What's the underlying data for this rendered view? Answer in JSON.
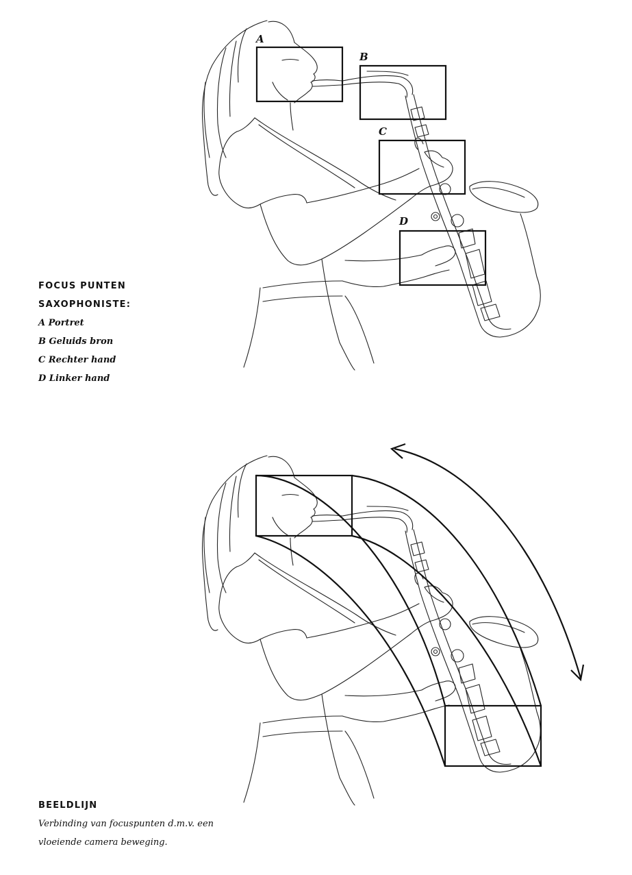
{
  "focus_points": {
    "heading_line1": "FOCUS PUNTEN",
    "heading_line2": "SAXOPHONISTE:",
    "items": [
      {
        "letter": "A",
        "label": "A Portret"
      },
      {
        "letter": "B",
        "label": "B Geluids bron"
      },
      {
        "letter": "C",
        "label": "C Rechter hand"
      },
      {
        "letter": "D",
        "label": "D Linker hand"
      }
    ]
  },
  "beeldlijn": {
    "heading": "BEELDLIJN",
    "line1": "Verbinding van focuspunten d.m.v. een",
    "line2": "vloeiende camera beweging."
  }
}
